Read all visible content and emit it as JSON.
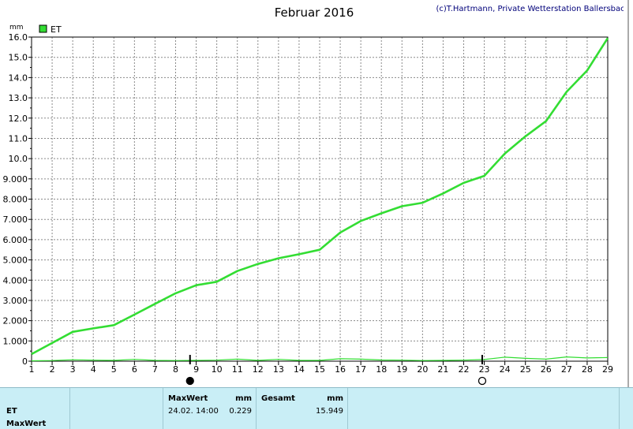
{
  "chart_data": {
    "type": "line",
    "title": "Februar 2016",
    "credit": "(c)T.Hartmann, Private Wetterstation Ballersbach",
    "ylabel": "mm",
    "ylim": [
      0,
      16
    ],
    "yticks": [
      "0",
      "1.000",
      "2.000",
      "3.000",
      "4.000",
      "5.000",
      "6.000",
      "7.000",
      "8.000",
      "9.000",
      "10.0",
      "11.0",
      "12.0",
      "13.0",
      "14.0",
      "15.0",
      "16.0"
    ],
    "xlim": [
      1,
      29
    ],
    "xticks": [
      "1",
      "2",
      "3",
      "4",
      "5",
      "6",
      "7",
      "8",
      "9",
      "10",
      "11",
      "12",
      "13",
      "14",
      "15",
      "16",
      "17",
      "18",
      "19",
      "20",
      "21",
      "22",
      "23",
      "24",
      "25",
      "26",
      "27",
      "28",
      "29"
    ],
    "grid": true,
    "legend_position": "top-left",
    "markers": [
      {
        "x": 8.7,
        "type": "filled-circle"
      },
      {
        "x": 22.9,
        "type": "open-circle"
      }
    ],
    "series": [
      {
        "name": "ET",
        "color": "#33dd33",
        "x": [
          1,
          2,
          3,
          4,
          5,
          6,
          7,
          8,
          9,
          10,
          11,
          12,
          13,
          14,
          15,
          16,
          17,
          18,
          19,
          20,
          21,
          22,
          23,
          24,
          25,
          26,
          27,
          28,
          29
        ],
        "values": [
          0.35,
          0.9,
          1.45,
          1.62,
          1.78,
          2.3,
          2.83,
          3.35,
          3.75,
          3.92,
          4.45,
          4.8,
          5.08,
          5.28,
          5.5,
          6.35,
          6.92,
          7.3,
          7.65,
          7.82,
          8.28,
          8.8,
          9.15,
          10.25,
          11.1,
          11.85,
          13.3,
          14.35,
          15.95
        ]
      },
      {
        "name": "",
        "color": "#33dd33",
        "x": [
          1,
          2,
          3,
          4,
          5,
          6,
          7,
          8,
          9,
          10,
          11,
          12,
          13,
          14,
          15,
          16,
          17,
          18,
          19,
          20,
          21,
          22,
          23,
          24,
          25,
          26,
          27,
          28,
          29
        ],
        "values": [
          0.02,
          0.03,
          0.07,
          0.05,
          0.04,
          0.09,
          0.04,
          0.03,
          0.04,
          0.05,
          0.1,
          0.04,
          0.09,
          0.04,
          0.04,
          0.12,
          0.1,
          0.06,
          0.05,
          0.03,
          0.04,
          0.05,
          0.08,
          0.2,
          0.14,
          0.1,
          0.21,
          0.16,
          0.18
        ]
      }
    ]
  },
  "info_panel": {
    "row_label": "ET",
    "row_label_2": "MaxWert",
    "max_header": "MaxWert",
    "max_unit": "mm",
    "max_time": "24.02.  14:00",
    "max_value": "0.229",
    "total_header": "Gesamt",
    "total_unit": "mm",
    "total_value": "15.949"
  }
}
